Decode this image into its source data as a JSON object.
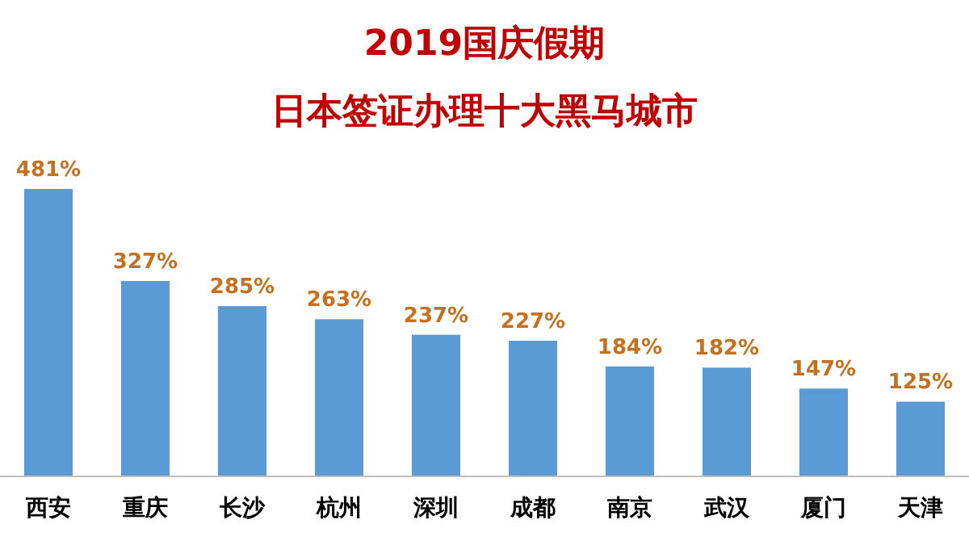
{
  "chart_data": {
    "type": "bar",
    "title": "2019国庆假期",
    "subtitle": "日本签证办理十大黑马城市",
    "categories": [
      "西安",
      "重庆",
      "长沙",
      "杭州",
      "深圳",
      "成都",
      "南京",
      "武汉",
      "厦门",
      "天津"
    ],
    "values": [
      481,
      327,
      285,
      263,
      237,
      227,
      184,
      182,
      147,
      125
    ],
    "value_labels": [
      "481%",
      "327%",
      "285%",
      "263%",
      "237%",
      "227%",
      "184%",
      "182%",
      "147%",
      "125%"
    ],
    "color": "#5b9bd5"
  }
}
